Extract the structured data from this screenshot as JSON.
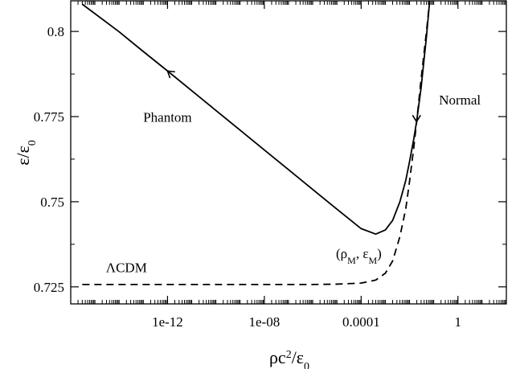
{
  "chart_data": {
    "type": "line",
    "xscale": "log",
    "xlim": [
      1e-16,
      100
    ],
    "ylim": [
      0.72,
      0.809
    ],
    "xlabel": "ρc²/ε₀",
    "ylabel": "ε/ε₀",
    "xticks": [
      {
        "value": 1e-12,
        "label": "1e-12"
      },
      {
        "value": 1e-08,
        "label": "1e-08"
      },
      {
        "value": 0.0001,
        "label": "0.0001"
      },
      {
        "value": 1,
        "label": "1"
      }
    ],
    "yticks": [
      {
        "value": 0.725,
        "label": "0.725"
      },
      {
        "value": 0.75,
        "label": "0.75"
      },
      {
        "value": 0.775,
        "label": "0.775"
      },
      {
        "value": 0.8,
        "label": "0.8"
      }
    ],
    "yminor": [
      0.7375,
      0.7625,
      0.7875
    ],
    "grid": false,
    "series": [
      {
        "name": "Phantom / Normal",
        "style": "solid",
        "color": "#000000",
        "x": [
          3e-16,
          1e-14,
          1e-13,
          1e-12,
          1e-11,
          1e-10,
          1e-09,
          1e-08,
          1e-07,
          1e-06,
          1e-05,
          0.0001,
          0.0004,
          0.001,
          0.002,
          0.004,
          0.007,
          0.01,
          0.015,
          0.02,
          0.03,
          0.05,
          0.07
        ],
        "y": [
          0.808,
          0.7999,
          0.7941,
          0.7884,
          0.7826,
          0.7768,
          0.771,
          0.7652,
          0.7594,
          0.7536,
          0.7478,
          0.7421,
          0.7405,
          0.7417,
          0.7445,
          0.75,
          0.7563,
          0.7618,
          0.7685,
          0.774,
          0.7835,
          0.7985,
          0.81
        ]
      },
      {
        "name": "ΛCDM",
        "style": "dashed",
        "color": "#000000",
        "x": [
          3e-16,
          1e-10,
          1e-06,
          1e-05,
          0.0001,
          0.0004,
          0.001,
          0.002,
          0.004,
          0.007,
          0.01,
          0.015,
          0.02,
          0.03,
          0.05,
          0.07
        ],
        "y": [
          0.7257,
          0.7257,
          0.7257,
          0.7258,
          0.7261,
          0.727,
          0.729,
          0.7326,
          0.7398,
          0.748,
          0.756,
          0.766,
          0.774,
          0.786,
          0.8,
          0.81
        ]
      }
    ],
    "arrows": [
      {
        "series": 0,
        "x": 1e-12,
        "direction": "up-left"
      },
      {
        "series": 0,
        "x": 0.0195,
        "direction": "down"
      }
    ],
    "annotations": [
      {
        "id": "phantom",
        "text": "Phantom",
        "x": 1e-12,
        "y": 0.7735
      },
      {
        "id": "normal",
        "text": "Normal",
        "x": 1.2,
        "y": 0.7785
      },
      {
        "id": "lcdm",
        "text": "ΛCDM",
        "x": 2e-14,
        "y": 0.7293
      },
      {
        "id": "point",
        "text": "(ρM, εM)",
        "sub": [
          "M",
          "M"
        ],
        "x": 8e-05,
        "y": 0.7335
      }
    ]
  }
}
